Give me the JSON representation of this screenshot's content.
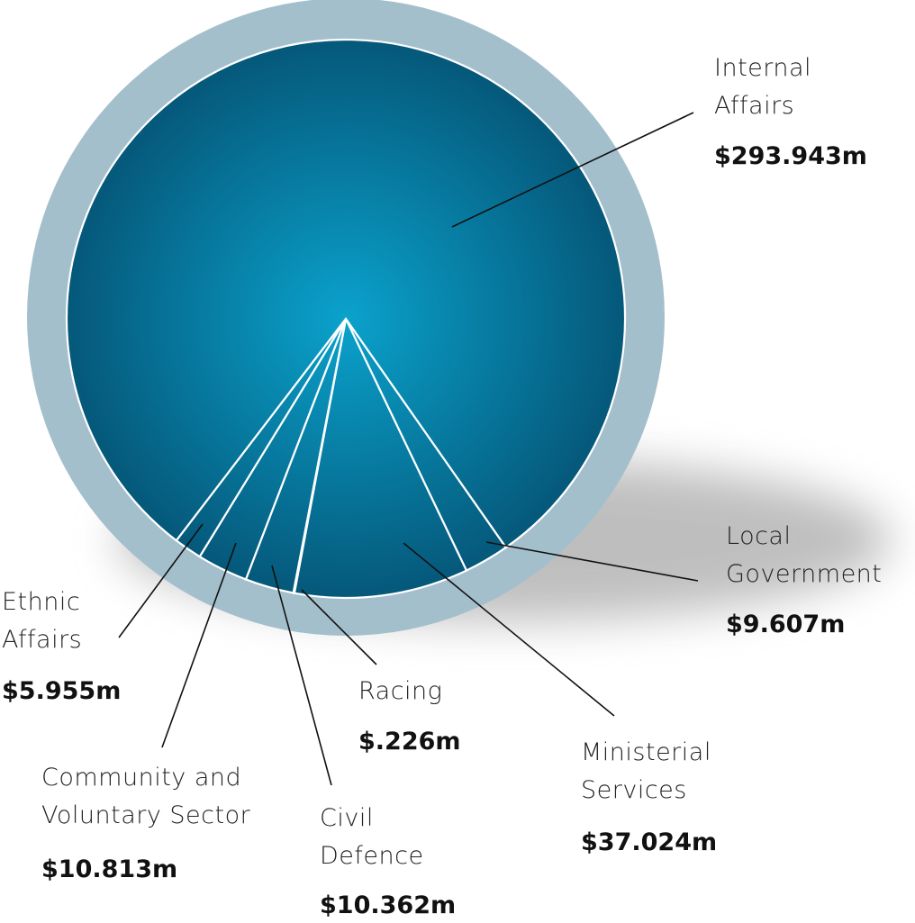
{
  "chart_data": {
    "type": "pie",
    "categories": [
      "Local Government",
      "Ministerial Services",
      "Racing",
      "Civil Defence",
      "Community and Voluntary Sector",
      "Ethnic Affairs",
      "Internal Affairs"
    ],
    "values": [
      9.607,
      37.024,
      0.226,
      10.362,
      10.813,
      5.955,
      293.943
    ],
    "value_labels": [
      "$9.607m",
      "$37.024m",
      "$.226m",
      "$10.362m",
      "$10.813m",
      "$5.955m",
      "$293.943m"
    ],
    "color": "#0a6f92"
  }
}
